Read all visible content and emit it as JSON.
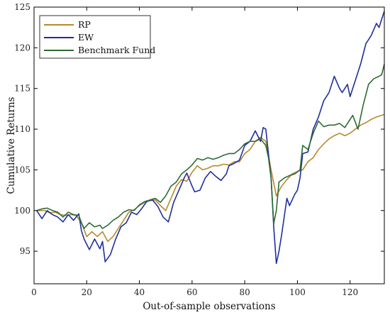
{
  "chart_data": {
    "type": "line",
    "title": "",
    "xlabel": "Out-of-sample observations",
    "ylabel": "Cumulative Returns",
    "xlim": [
      0,
      133
    ],
    "ylim": [
      91,
      125
    ],
    "xticks": [
      0,
      20,
      40,
      60,
      80,
      100,
      120
    ],
    "yticks": [
      95,
      100,
      105,
      110,
      115,
      120,
      125
    ],
    "grid": false,
    "legend_position": "top-left",
    "series": [
      {
        "name": "RP",
        "color": "#b8892a",
        "points": [
          [
            1,
            100
          ],
          [
            4,
            100
          ],
          [
            6,
            99.7
          ],
          [
            8,
            99.8
          ],
          [
            10,
            99.5
          ],
          [
            12,
            99.4
          ],
          [
            14,
            99.5
          ],
          [
            16,
            99.4
          ],
          [
            18,
            98.5
          ],
          [
            20,
            96.8
          ],
          [
            22,
            97.4
          ],
          [
            24,
            96.8
          ],
          [
            26,
            97.4
          ],
          [
            28,
            96.2
          ],
          [
            30,
            96.8
          ],
          [
            32,
            97.8
          ],
          [
            34,
            98.8
          ],
          [
            36,
            99.8
          ],
          [
            38,
            100.1
          ],
          [
            40,
            100.6
          ],
          [
            42,
            101.0
          ],
          [
            44,
            101.2
          ],
          [
            46,
            101.3
          ],
          [
            48,
            100.6
          ],
          [
            50,
            100.0
          ],
          [
            52,
            101.5
          ],
          [
            54,
            103.0
          ],
          [
            56,
            103.8
          ],
          [
            58,
            103.6
          ],
          [
            60,
            104.7
          ],
          [
            62,
            105.5
          ],
          [
            64,
            105.0
          ],
          [
            66,
            105.2
          ],
          [
            68,
            105.5
          ],
          [
            70,
            105.5
          ],
          [
            72,
            105.7
          ],
          [
            74,
            105.6
          ],
          [
            76,
            106.0
          ],
          [
            78,
            106.0
          ],
          [
            80,
            107.0
          ],
          [
            82,
            107.5
          ],
          [
            84,
            108.5
          ],
          [
            86,
            109.0
          ],
          [
            88,
            108.5
          ],
          [
            90,
            105.0
          ],
          [
            92,
            101.8
          ],
          [
            94,
            103.0
          ],
          [
            96,
            103.8
          ],
          [
            98,
            104.5
          ],
          [
            100,
            104.8
          ],
          [
            102,
            105.0
          ],
          [
            104,
            106.0
          ],
          [
            106,
            106.5
          ],
          [
            108,
            107.5
          ],
          [
            110,
            108.2
          ],
          [
            112,
            108.8
          ],
          [
            114,
            109.2
          ],
          [
            116,
            109.5
          ],
          [
            118,
            109.2
          ],
          [
            120,
            109.5
          ],
          [
            122,
            110.0
          ],
          [
            124,
            110.5
          ],
          [
            126,
            110.8
          ],
          [
            128,
            111.2
          ],
          [
            130,
            111.5
          ],
          [
            133,
            111.8
          ]
        ]
      },
      {
        "name": "EW",
        "color": "#1f2f9e",
        "points": [
          [
            1,
            100
          ],
          [
            3,
            99.0
          ],
          [
            5,
            100.0
          ],
          [
            7,
            99.5
          ],
          [
            9,
            99.2
          ],
          [
            11,
            98.6
          ],
          [
            13,
            99.5
          ],
          [
            15,
            98.8
          ],
          [
            17,
            99.6
          ],
          [
            18,
            97.5
          ],
          [
            19,
            96.5
          ],
          [
            21,
            95.2
          ],
          [
            23,
            96.5
          ],
          [
            25,
            95.3
          ],
          [
            26,
            96.2
          ],
          [
            27,
            93.7
          ],
          [
            29,
            94.6
          ],
          [
            31,
            96.5
          ],
          [
            33,
            98.0
          ],
          [
            35,
            98.5
          ],
          [
            37,
            99.8
          ],
          [
            39,
            99.5
          ],
          [
            41,
            100.3
          ],
          [
            43,
            101.2
          ],
          [
            45,
            101.3
          ],
          [
            47,
            100.5
          ],
          [
            49,
            99.2
          ],
          [
            51,
            98.6
          ],
          [
            53,
            101.0
          ],
          [
            55,
            102.5
          ],
          [
            57,
            104.0
          ],
          [
            58,
            104.6
          ],
          [
            60,
            103.0
          ],
          [
            61,
            102.3
          ],
          [
            63,
            102.5
          ],
          [
            65,
            104.0
          ],
          [
            67,
            104.8
          ],
          [
            69,
            104.2
          ],
          [
            71,
            103.7
          ],
          [
            73,
            104.5
          ],
          [
            74,
            105.5
          ],
          [
            76,
            105.8
          ],
          [
            78,
            106.2
          ],
          [
            80,
            108.0
          ],
          [
            82,
            108.5
          ],
          [
            84,
            109.8
          ],
          [
            86,
            108.5
          ],
          [
            87,
            110.2
          ],
          [
            88,
            110.0
          ],
          [
            89,
            107.0
          ],
          [
            90,
            104.0
          ],
          [
            91,
            98.0
          ],
          [
            92,
            93.5
          ],
          [
            93,
            95.0
          ],
          [
            94,
            97.0
          ],
          [
            96,
            101.5
          ],
          [
            97,
            100.6
          ],
          [
            99,
            102.0
          ],
          [
            100,
            102.5
          ],
          [
            101,
            104.0
          ],
          [
            102,
            107.0
          ],
          [
            104,
            107.2
          ],
          [
            106,
            110.0
          ],
          [
            108,
            111.5
          ],
          [
            110,
            113.5
          ],
          [
            112,
            114.5
          ],
          [
            114,
            116.5
          ],
          [
            116,
            115.0
          ],
          [
            117,
            114.5
          ],
          [
            119,
            115.5
          ],
          [
            120,
            114.0
          ],
          [
            122,
            116.0
          ],
          [
            124,
            118.0
          ],
          [
            126,
            120.5
          ],
          [
            128,
            121.5
          ],
          [
            130,
            123.0
          ],
          [
            131,
            122.5
          ],
          [
            133,
            124.5
          ]
        ]
      },
      {
        "name": "Benchmark Fund",
        "color": "#2e6b33",
        "points": [
          [
            1,
            100
          ],
          [
            3,
            100.2
          ],
          [
            5,
            100.3
          ],
          [
            7,
            100.0
          ],
          [
            9,
            99.8
          ],
          [
            11,
            99.2
          ],
          [
            13,
            99.8
          ],
          [
            15,
            99.5
          ],
          [
            17,
            99.4
          ],
          [
            18,
            98.5
          ],
          [
            19,
            97.8
          ],
          [
            21,
            98.5
          ],
          [
            23,
            98.0
          ],
          [
            25,
            98.2
          ],
          [
            26,
            97.8
          ],
          [
            28,
            98.2
          ],
          [
            30,
            98.8
          ],
          [
            32,
            99.2
          ],
          [
            34,
            99.8
          ],
          [
            36,
            100.1
          ],
          [
            38,
            100.0
          ],
          [
            40,
            100.7
          ],
          [
            42,
            101.1
          ],
          [
            44,
            101.3
          ],
          [
            46,
            101.5
          ],
          [
            48,
            101.0
          ],
          [
            50,
            101.8
          ],
          [
            52,
            103.0
          ],
          [
            54,
            103.5
          ],
          [
            56,
            104.5
          ],
          [
            58,
            105.0
          ],
          [
            60,
            105.6
          ],
          [
            62,
            106.4
          ],
          [
            64,
            106.2
          ],
          [
            66,
            106.5
          ],
          [
            68,
            106.3
          ],
          [
            70,
            106.5
          ],
          [
            72,
            106.8
          ],
          [
            74,
            107.0
          ],
          [
            76,
            107.0
          ],
          [
            78,
            107.5
          ],
          [
            80,
            108.2
          ],
          [
            82,
            108.5
          ],
          [
            84,
            108.5
          ],
          [
            86,
            108.8
          ],
          [
            88,
            108.0
          ],
          [
            89,
            106.5
          ],
          [
            90,
            104.0
          ],
          [
            91,
            98.4
          ],
          [
            92,
            100.0
          ],
          [
            93,
            103.5
          ],
          [
            95,
            104.0
          ],
          [
            97,
            104.3
          ],
          [
            99,
            104.5
          ],
          [
            101,
            105.0
          ],
          [
            102,
            108.0
          ],
          [
            104,
            107.5
          ],
          [
            106,
            109.5
          ],
          [
            108,
            111.0
          ],
          [
            110,
            110.3
          ],
          [
            112,
            110.5
          ],
          [
            114,
            110.5
          ],
          [
            116,
            110.7
          ],
          [
            118,
            110.2
          ],
          [
            120,
            111.2
          ],
          [
            121,
            111.7
          ],
          [
            123,
            110.0
          ],
          [
            125,
            113.0
          ],
          [
            127,
            115.5
          ],
          [
            129,
            116.2
          ],
          [
            131,
            116.5
          ],
          [
            132,
            116.7
          ],
          [
            133,
            118.0
          ]
        ]
      }
    ]
  }
}
